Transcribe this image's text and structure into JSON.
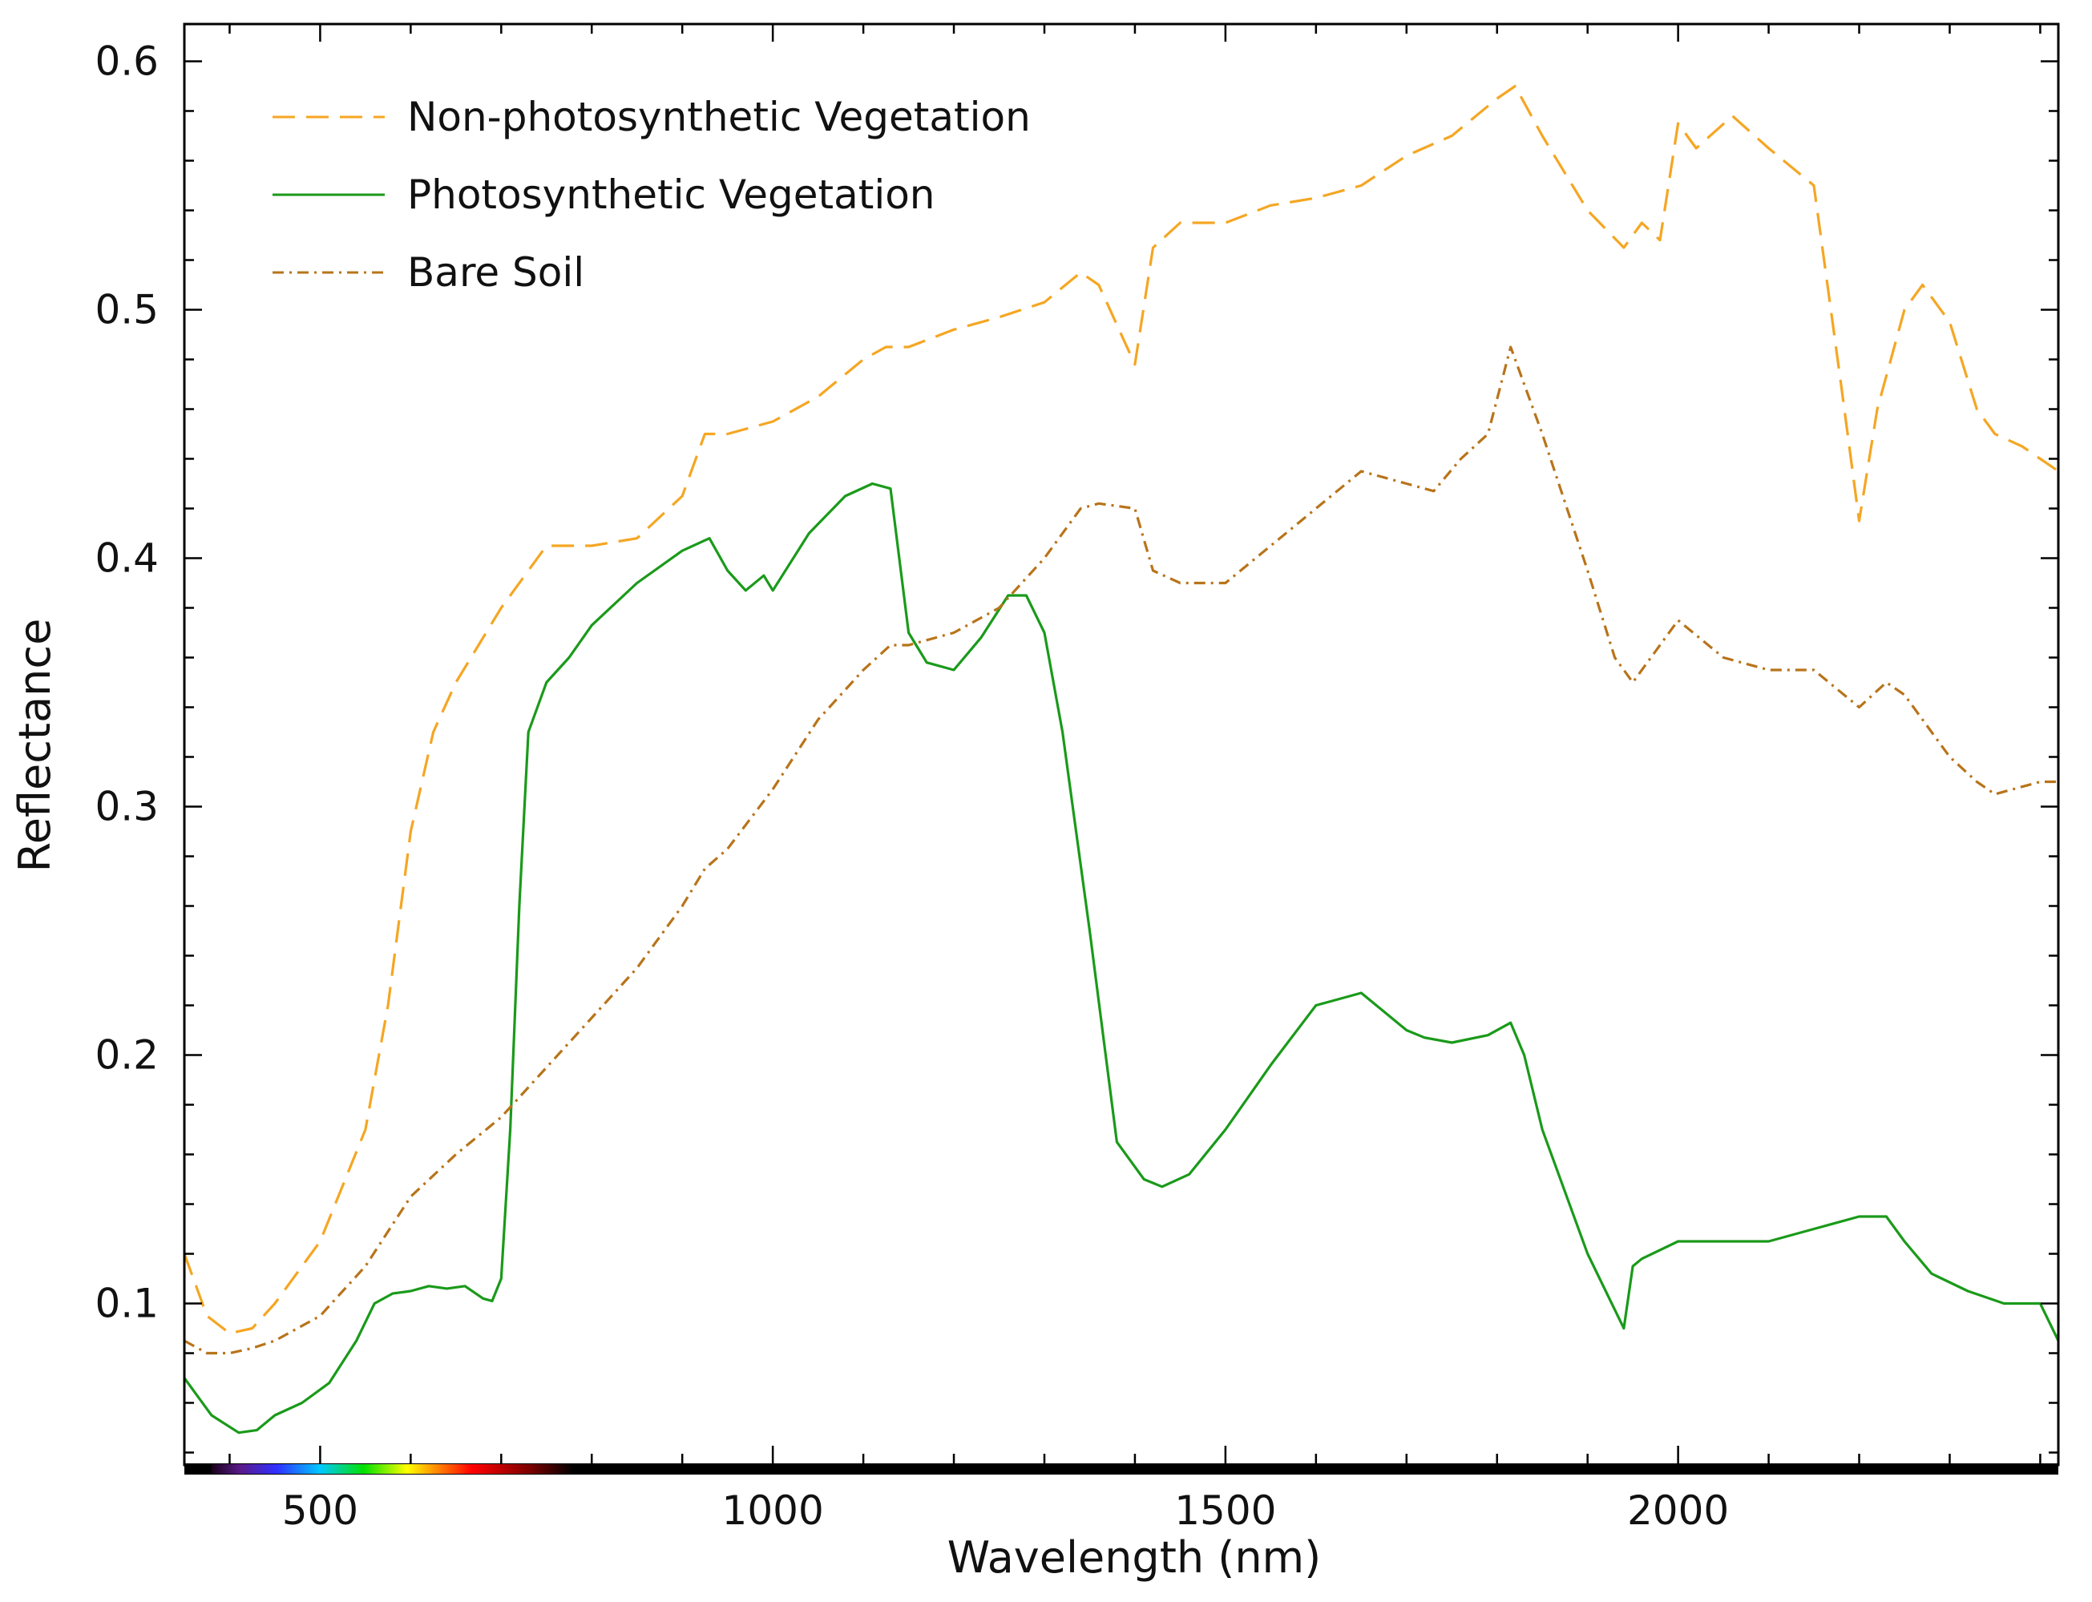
{
  "chart_data": {
    "type": "line",
    "title": "",
    "xlabel": "Wavelength (nm)",
    "ylabel": "Reflectance",
    "xlim": [
      350,
      2420
    ],
    "ylim": [
      0.035,
      0.615
    ],
    "xticks": [
      {
        "value": 500,
        "label": "500"
      },
      {
        "value": 1000,
        "label": "1000"
      },
      {
        "value": 1500,
        "label": "1500"
      },
      {
        "value": 2000,
        "label": "2000"
      }
    ],
    "yticks": [
      {
        "value": 0.1,
        "label": "0.1"
      },
      {
        "value": 0.2,
        "label": "0.2"
      },
      {
        "value": 0.3,
        "label": "0.3"
      },
      {
        "value": 0.4,
        "label": "0.4"
      },
      {
        "value": 0.5,
        "label": "0.5"
      },
      {
        "value": 0.6,
        "label": "0.6"
      }
    ],
    "legend_position": "top-left",
    "spectrum_bar": {
      "from": 380,
      "to": 780
    },
    "series": [
      {
        "name": "Non-photosynthetic Vegetation",
        "key": "npv",
        "color": "#F5A623",
        "dash": "dashed",
        "x": [
          350,
          375,
          400,
          425,
          450,
          500,
          550,
          575,
          600,
          625,
          650,
          700,
          750,
          800,
          850,
          900,
          925,
          950,
          1000,
          1050,
          1100,
          1125,
          1150,
          1200,
          1250,
          1300,
          1340,
          1360,
          1400,
          1420,
          1450,
          1500,
          1550,
          1600,
          1650,
          1700,
          1750,
          1800,
          1820,
          1850,
          1900,
          1940,
          1960,
          1980,
          2000,
          2020,
          2060,
          2100,
          2150,
          2180,
          2200,
          2220,
          2250,
          2270,
          2300,
          2330,
          2350,
          2380,
          2400,
          2420
        ],
        "y": [
          0.12,
          0.095,
          0.088,
          0.09,
          0.1,
          0.125,
          0.17,
          0.22,
          0.29,
          0.33,
          0.35,
          0.38,
          0.405,
          0.405,
          0.408,
          0.425,
          0.45,
          0.45,
          0.455,
          0.465,
          0.48,
          0.485,
          0.485,
          0.492,
          0.497,
          0.503,
          0.515,
          0.51,
          0.478,
          0.525,
          0.535,
          0.535,
          0.542,
          0.545,
          0.55,
          0.562,
          0.57,
          0.585,
          0.59,
          0.57,
          0.54,
          0.525,
          0.535,
          0.528,
          0.575,
          0.565,
          0.578,
          0.565,
          0.55,
          0.47,
          0.415,
          0.46,
          0.5,
          0.51,
          0.495,
          0.46,
          0.45,
          0.445,
          0.44,
          0.435
        ]
      },
      {
        "name": "Photosynthetic Vegetation",
        "key": "pv",
        "color": "#1A9A1A",
        "dash": "solid",
        "x": [
          350,
          380,
          410,
          430,
          450,
          480,
          510,
          540,
          560,
          580,
          600,
          620,
          640,
          660,
          680,
          690,
          700,
          710,
          720,
          730,
          750,
          775,
          800,
          850,
          900,
          930,
          950,
          970,
          990,
          1000,
          1040,
          1080,
          1110,
          1130,
          1150,
          1170,
          1200,
          1230,
          1260,
          1280,
          1300,
          1320,
          1350,
          1380,
          1410,
          1430,
          1460,
          1500,
          1550,
          1600,
          1650,
          1700,
          1720,
          1750,
          1790,
          1815,
          1830,
          1850,
          1900,
          1940,
          1950,
          1960,
          2000,
          2050,
          2100,
          2150,
          2200,
          2230,
          2250,
          2280,
          2320,
          2360,
          2400,
          2420
        ],
        "y": [
          0.07,
          0.055,
          0.048,
          0.049,
          0.055,
          0.06,
          0.068,
          0.085,
          0.1,
          0.104,
          0.105,
          0.107,
          0.106,
          0.107,
          0.102,
          0.101,
          0.11,
          0.17,
          0.26,
          0.33,
          0.35,
          0.36,
          0.373,
          0.39,
          0.403,
          0.408,
          0.395,
          0.387,
          0.393,
          0.387,
          0.41,
          0.425,
          0.43,
          0.428,
          0.37,
          0.358,
          0.355,
          0.368,
          0.385,
          0.385,
          0.37,
          0.33,
          0.25,
          0.165,
          0.15,
          0.147,
          0.152,
          0.17,
          0.196,
          0.22,
          0.225,
          0.21,
          0.207,
          0.205,
          0.208,
          0.213,
          0.2,
          0.17,
          0.12,
          0.09,
          0.115,
          0.118,
          0.125,
          0.125,
          0.125,
          0.13,
          0.135,
          0.135,
          0.125,
          0.112,
          0.105,
          0.1,
          0.1,
          0.085
        ]
      },
      {
        "name": "Bare Soil",
        "key": "soil",
        "color": "#B8741A",
        "dash": "dashdot",
        "x": [
          350,
          375,
          400,
          425,
          450,
          500,
          550,
          600,
          650,
          700,
          750,
          800,
          850,
          900,
          925,
          950,
          1000,
          1050,
          1100,
          1130,
          1150,
          1200,
          1250,
          1300,
          1340,
          1360,
          1400,
          1420,
          1450,
          1500,
          1550,
          1600,
          1650,
          1700,
          1730,
          1760,
          1790,
          1815,
          1830,
          1850,
          1900,
          1930,
          1950,
          1970,
          2000,
          2050,
          2100,
          2150,
          2200,
          2230,
          2250,
          2280,
          2300,
          2330,
          2350,
          2380,
          2400,
          2420
        ],
        "y": [
          0.085,
          0.08,
          0.08,
          0.082,
          0.085,
          0.095,
          0.115,
          0.143,
          0.16,
          0.175,
          0.195,
          0.215,
          0.235,
          0.26,
          0.275,
          0.283,
          0.307,
          0.335,
          0.355,
          0.365,
          0.365,
          0.37,
          0.38,
          0.4,
          0.42,
          0.422,
          0.42,
          0.395,
          0.39,
          0.39,
          0.405,
          0.42,
          0.435,
          0.43,
          0.427,
          0.44,
          0.45,
          0.485,
          0.47,
          0.45,
          0.395,
          0.36,
          0.35,
          0.36,
          0.375,
          0.36,
          0.355,
          0.355,
          0.34,
          0.35,
          0.345,
          0.33,
          0.32,
          0.31,
          0.305,
          0.308,
          0.31,
          0.31
        ]
      }
    ]
  }
}
